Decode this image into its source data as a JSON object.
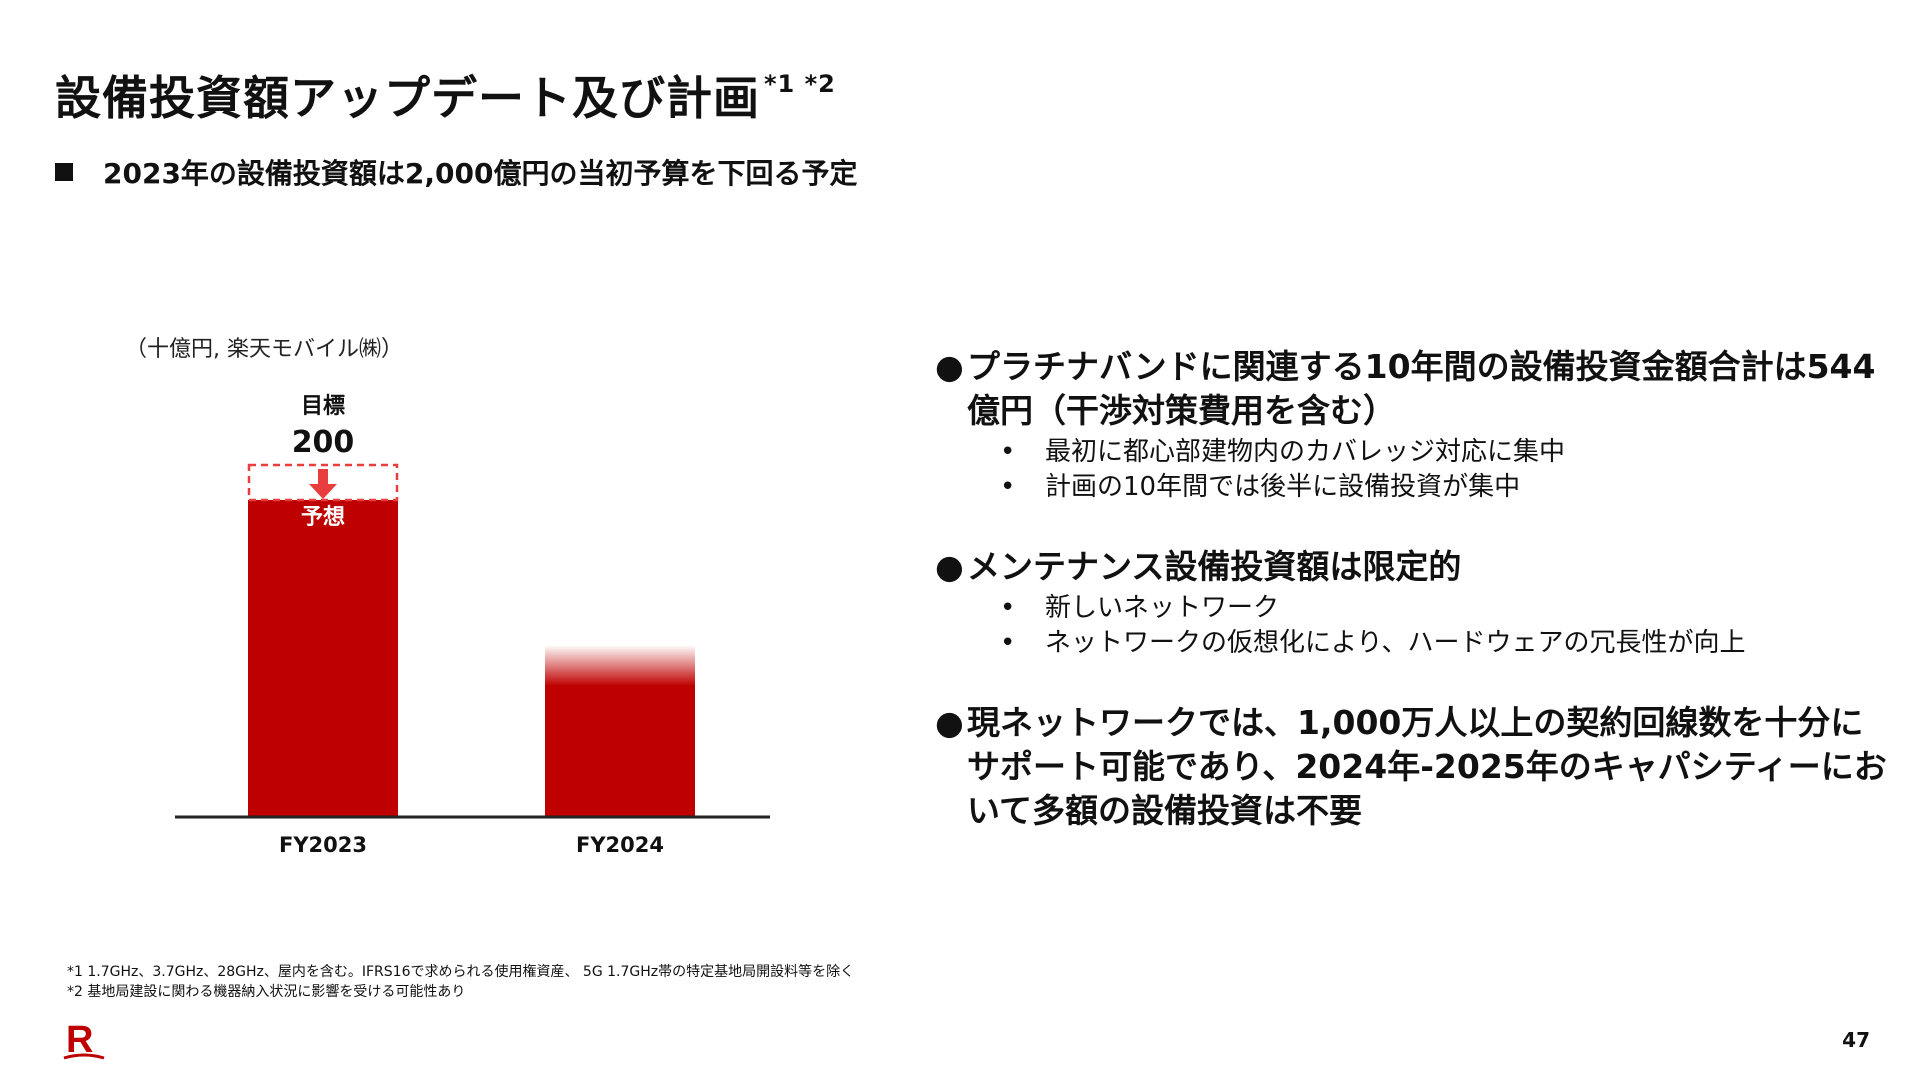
{
  "title": "設備投資額アップデート及び計画",
  "title_sup": "*1 *2",
  "subtitle": "2023年の設備投資額は2,000億円の当初予算を下回る予定",
  "chart_data": {
    "type": "bar",
    "unit_label": "（十億円, 楽天モバイル㈱）",
    "categories": [
      "FY2023",
      "FY2024"
    ],
    "target": {
      "label": "目標",
      "value": 200,
      "category": "FY2023"
    },
    "forecast_label": "予想",
    "ylim": [
      0,
      200
    ],
    "colors": {
      "bar": "#bf0000",
      "target_outline": "#e83e3e",
      "arrow": "#e83e3e",
      "axis": "#222222"
    }
  },
  "bullets": [
    {
      "heading": "プラチナバンドに関連する10年間の設備投資金額合計は544億円（干渉対策費用を含む）",
      "items": [
        "最初に都心部建物内のカバレッジ対応に集中",
        "計画の10年間では後半に設備投資が集中"
      ]
    },
    {
      "heading": "メンテナンス設備投資額は限定的",
      "items": [
        "新しいネットワーク",
        "ネットワークの仮想化により、ハードウェアの冗長性が向上"
      ]
    },
    {
      "heading": "現ネットワークでは、1,000万人以上の契約回線数を十分にサポート可能であり、2024年-2025年のキャパシティーにおいて多額の設備投資は不要",
      "items": []
    }
  ],
  "footnotes": [
    "*1 1.7GHz、3.7GHz、28GHz、屋内を含む。IFRS16で求められる使用権資産、 5G 1.7GHz帯の特定基地局開設料等を除く",
    "*2 基地局建設に関わる機器納入状況に影響を受ける可能性あり"
  ],
  "logo_letter": "R",
  "page_number": "47",
  "colors": {
    "brand": "#bf0000"
  }
}
